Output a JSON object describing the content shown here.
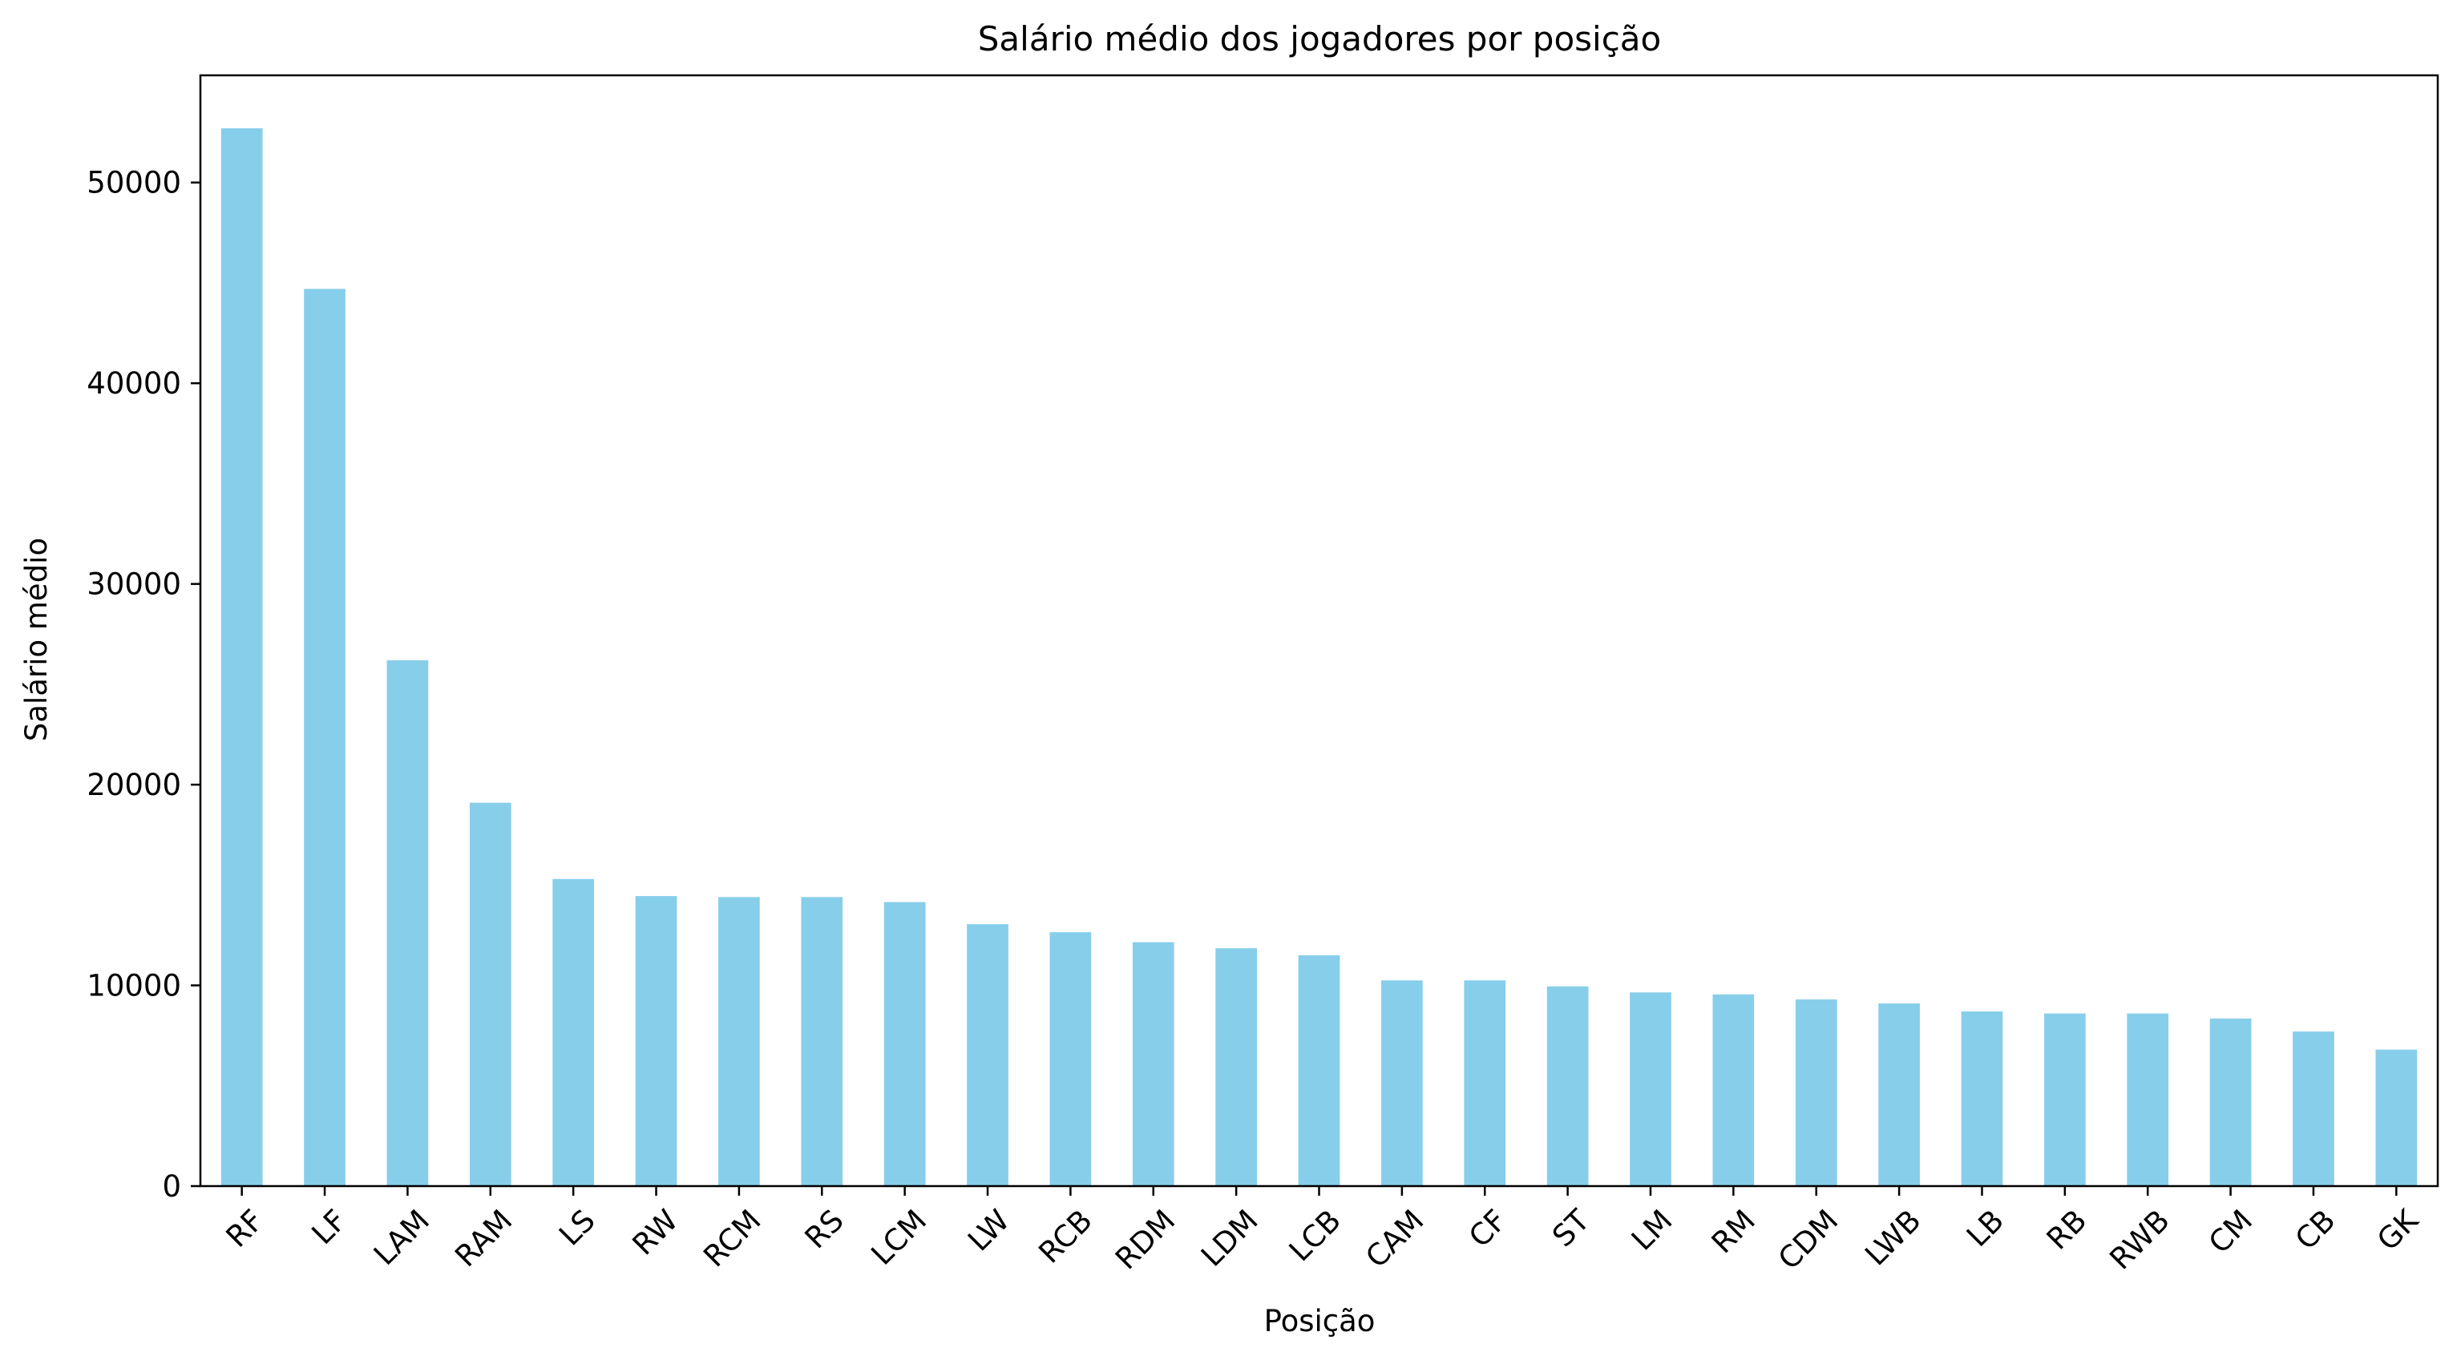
{
  "chart_data": {
    "type": "bar",
    "title": "Salário médio dos jogadores por posição",
    "xlabel": "Posição",
    "ylabel": "Salário médio",
    "categories": [
      "RF",
      "LF",
      "LAM",
      "RAM",
      "LS",
      "RW",
      "RCM",
      "RS",
      "LCM",
      "LW",
      "RCB",
      "RDM",
      "LDM",
      "LCB",
      "CAM",
      "CF",
      "ST",
      "LM",
      "RM",
      "CDM",
      "LWB",
      "LB",
      "RB",
      "RWB",
      "CM",
      "CB",
      "GK"
    ],
    "values": [
      52700,
      44700,
      26200,
      19100,
      15300,
      14450,
      14400,
      14400,
      14150,
      13050,
      12650,
      12150,
      11850,
      11500,
      10250,
      10250,
      9950,
      9650,
      9550,
      9300,
      9100,
      8700,
      8600,
      8600,
      8350,
      7700,
      6800
    ],
    "ylim": [
      0,
      55340
    ],
    "yticks": [
      0,
      10000,
      20000,
      30000,
      40000,
      50000
    ],
    "ytick_labels": [
      "0",
      "10000",
      "20000",
      "30000",
      "40000",
      "50000"
    ],
    "grid": false,
    "bar_color": "#87ceeb",
    "axis_color": "#000000",
    "text_color": "#000000"
  }
}
